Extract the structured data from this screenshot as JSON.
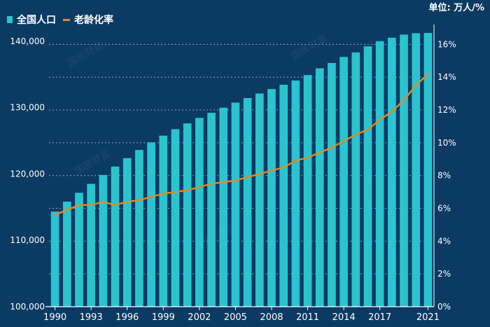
{
  "legend": {
    "population": "全国人口",
    "aging_rate": "老龄化率"
  },
  "unit_label": "单位: 万人/%",
  "watermark": "国民财富",
  "colors": {
    "background": "#0b3a63",
    "bar": "#29c4cf",
    "line": "#e8891c",
    "grid": "#c9d6e3",
    "text": "#ffffff"
  },
  "chart_data": {
    "type": "bar",
    "title": "",
    "x": [
      1990,
      1991,
      1992,
      1993,
      1994,
      1995,
      1996,
      1997,
      1998,
      1999,
      2000,
      2001,
      2002,
      2003,
      2004,
      2005,
      2006,
      2007,
      2008,
      2009,
      2010,
      2011,
      2012,
      2013,
      2014,
      2015,
      2016,
      2017,
      2018,
      2019,
      2020,
      2021
    ],
    "x_tick_labels": [
      "1990",
      "1993",
      "1996",
      "1999",
      "2002",
      "2005",
      "2008",
      "2011",
      "2014",
      "2017",
      "2021"
    ],
    "x_ticks": [
      1990,
      1993,
      1996,
      1999,
      2002,
      2005,
      2008,
      2011,
      2014,
      2017,
      2021
    ],
    "series": [
      {
        "name": "全国人口",
        "type": "bar",
        "axis": "left",
        "values": [
          114333,
          115823,
          117171,
          118517,
          119850,
          121121,
          122389,
          123626,
          124761,
          125786,
          126743,
          127627,
          128453,
          129227,
          129988,
          130756,
          131448,
          132129,
          132802,
          133450,
          134091,
          134916,
          135922,
          136726,
          137646,
          138326,
          139232,
          140011,
          140541,
          141008,
          141212,
          141260
        ]
      },
      {
        "name": "老龄化率",
        "type": "line",
        "axis": "right",
        "values": [
          5.6,
          5.9,
          6.2,
          6.2,
          6.4,
          6.2,
          6.4,
          6.5,
          6.7,
          6.9,
          7.0,
          7.1,
          7.3,
          7.5,
          7.6,
          7.7,
          7.9,
          8.1,
          8.3,
          8.5,
          8.9,
          9.1,
          9.4,
          9.7,
          10.1,
          10.5,
          10.8,
          11.4,
          11.9,
          12.6,
          13.5,
          14.2
        ]
      }
    ],
    "y_left": {
      "ylim": [
        100000,
        142000
      ],
      "ticks": [
        100000,
        110000,
        120000,
        130000,
        140000
      ],
      "tick_labels": [
        "100,000",
        "110,000",
        "120,000",
        "130,000",
        "140,000"
      ]
    },
    "y_right": {
      "ylim": [
        0,
        17
      ],
      "ticks": [
        0,
        2,
        4,
        6,
        8,
        10,
        12,
        14,
        16
      ],
      "tick_labels": [
        "0%",
        "2%",
        "4%",
        "6%",
        "8%",
        "10%",
        "12%",
        "14%",
        "16%"
      ]
    },
    "grid": true,
    "legend_position": "top-left"
  }
}
